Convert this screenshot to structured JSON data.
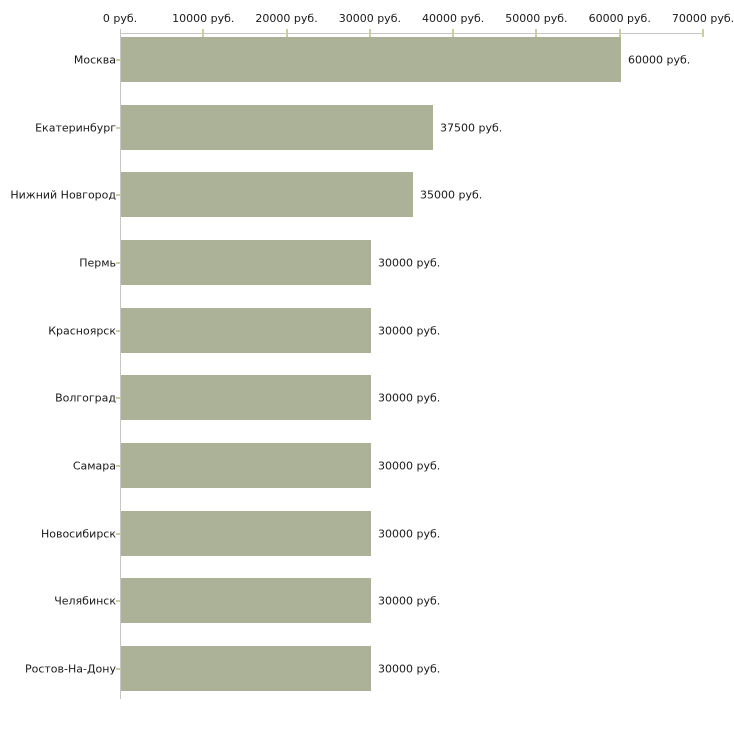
{
  "chart_data": {
    "type": "bar",
    "orientation": "horizontal",
    "title": "",
    "xlabel": "",
    "ylabel": "",
    "unit": "руб.",
    "categories": [
      "Москва",
      "Екатеринбург",
      "Нижний Новгород",
      "Пермь",
      "Красноярск",
      "Волгоград",
      "Самара",
      "Новосибирск",
      "Челябинск",
      "Ростов-На-Дону"
    ],
    "values": [
      60000,
      37500,
      35000,
      30000,
      30000,
      30000,
      30000,
      30000,
      30000,
      30000
    ],
    "value_labels": [
      "60000 руб.",
      "37500 руб.",
      "35000 руб.",
      "30000 руб.",
      "30000 руб.",
      "30000 руб.",
      "30000 руб.",
      "30000 руб.",
      "30000 руб.",
      "30000 руб."
    ],
    "x_tick_values": [
      0,
      10000,
      20000,
      30000,
      40000,
      50000,
      60000,
      70000
    ],
    "x_tick_labels": [
      "0 руб.",
      "10000 руб.",
      "20000 руб.",
      "30000 руб.",
      "40000 руб.",
      "50000 руб.",
      "60000 руб.",
      "70000 руб."
    ],
    "xlim": [
      0,
      70000
    ],
    "axis_position": "top",
    "grid": false,
    "legend": null,
    "colors": {
      "bar_fill": "#abb297",
      "axis_line": "#c6c6c6",
      "tick_mark": "#cbcf9e",
      "text": "#1a1a1a",
      "background": "#ffffff"
    }
  }
}
